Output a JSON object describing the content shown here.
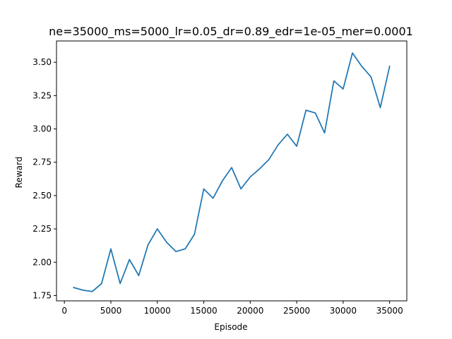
{
  "chart_data": {
    "type": "line",
    "title": "ne=35000_ms=5000_lr=0.05_dr=0.89_edr=1e-05_mer=0.0001",
    "xlabel": "Episode",
    "ylabel": "Reward",
    "xlim": [
      -850,
      36850
    ],
    "ylim": [
      1.71,
      3.66
    ],
    "xticks": [
      0,
      5000,
      10000,
      15000,
      20000,
      25000,
      30000,
      35000
    ],
    "xtick_labels": [
      "0",
      "5000",
      "10000",
      "15000",
      "20000",
      "25000",
      "30000",
      "35000"
    ],
    "yticks": [
      1.75,
      2.0,
      2.25,
      2.5,
      2.75,
      3.0,
      3.25,
      3.5
    ],
    "ytick_labels": [
      "1.75",
      "2.00",
      "2.25",
      "2.50",
      "2.75",
      "3.00",
      "3.25",
      "3.50"
    ],
    "grid": false,
    "series": [
      {
        "color": "#1f77b4",
        "x": [
          1000,
          2000,
          3000,
          4000,
          5000,
          6000,
          7000,
          8000,
          9000,
          10000,
          11000,
          12000,
          13000,
          14000,
          15000,
          16000,
          17000,
          18000,
          19000,
          20000,
          21000,
          22000,
          23000,
          24000,
          25000,
          26000,
          27000,
          28000,
          29000,
          30000,
          31000,
          32000,
          33000,
          34000,
          35000
        ],
        "y": [
          1.81,
          1.79,
          1.78,
          1.84,
          2.1,
          1.84,
          2.02,
          1.9,
          2.13,
          2.25,
          2.15,
          2.08,
          2.1,
          2.21,
          2.55,
          2.48,
          2.61,
          2.71,
          2.55,
          2.64,
          2.7,
          2.77,
          2.88,
          2.96,
          2.87,
          3.14,
          3.12,
          2.97,
          3.36,
          3.3,
          3.57,
          3.47,
          3.39,
          3.16,
          3.47
        ]
      }
    ]
  }
}
